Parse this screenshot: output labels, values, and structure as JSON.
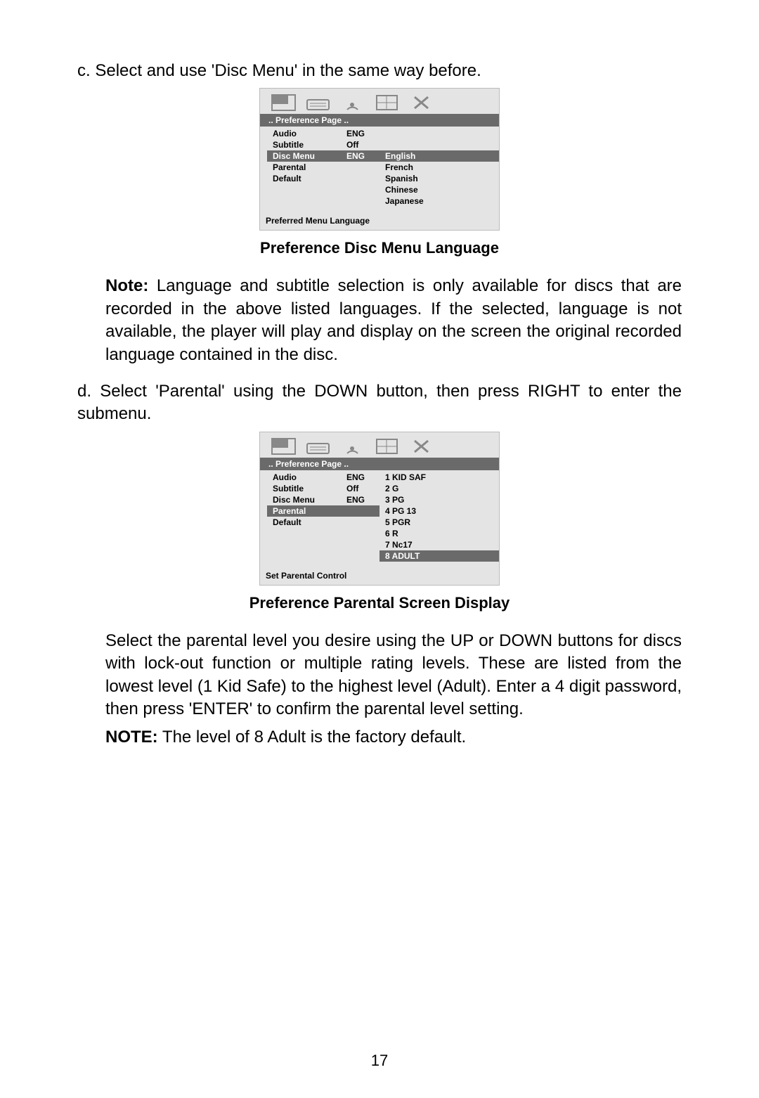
{
  "step_c": "c. Select  and  use 'Disc Menu' in the same way before.",
  "ui1": {
    "header": "..   Preference   Page   ..",
    "col1": [
      "Audio",
      "Subtitle",
      "Disc   Menu",
      "Parental",
      "Default"
    ],
    "col1_highlight_index": 2,
    "col2": [
      "ENG",
      "Off",
      "ENG",
      "",
      ""
    ],
    "col3": [
      "English",
      "French",
      "Spanish",
      "Chinese",
      "Japanese"
    ],
    "col3_offset_rows": 2,
    "col3_highlight_index": 0,
    "footer": "Preferred   Menu   Language"
  },
  "caption1": "Preference  Disc  Menu  Language",
  "note1_label": "Note:",
  "note1_body": " Language and subtitle selection is only available for discs that are recorded in  the above listed languages.  If the selected, language is not available,  the player will play and display on the screen the original recorded language contained in the disc.",
  "step_d": "d. Select 'Parental' using the DOWN button, then press RIGHT to enter the submenu.",
  "ui2": {
    "header": "..   Preference   Page   ..",
    "col1": [
      "Audio",
      "Subtitle",
      "Disc   Menu",
      "Parental",
      "Default"
    ],
    "col1_highlight_index": 3,
    "col2": [
      "ENG",
      "Off",
      "ENG",
      "",
      ""
    ],
    "col3": [
      "1   KID   SAF",
      "2   G",
      "3   PG",
      "4   PG   13",
      "5   PGR",
      "6   R",
      "7   Nc17",
      "8   ADULT"
    ],
    "col3_offset_rows": 0,
    "col3_highlight_index": 7,
    "footer": "Set   Parental   Control"
  },
  "caption2": "Preference  Parental  Screen  Display",
  "body2": "Select the parental level you desire using the UP or DOWN buttons for discs with lock-out function or multiple rating levels. These are listed from the lowest level (1 Kid Safe) to the highest level (Adult). Enter a 4 digit password, then press 'ENTER' to confirm the parental level setting.",
  "note2_label": "NOTE:",
  "note2_body": " The level of 8 Adult is the factory default.",
  "page_number": "17",
  "icon_stroke": "#888888"
}
